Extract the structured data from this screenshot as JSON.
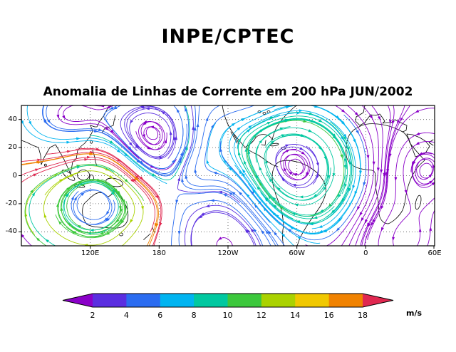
{
  "header": {
    "title": "INPE/CPTEC"
  },
  "chart_data": {
    "type": "streamline_map",
    "title": "Anomalia de Linhas de Corrente em 200 hPa JUN/2002",
    "variable": "Anomalia de Linhas de Corrente",
    "level": "200 hPa",
    "period": "JUN/2002",
    "grid": true,
    "lat_range": [
      -50,
      50
    ],
    "y_tick_labels": [
      "40",
      "20",
      "0",
      "-20",
      "-40"
    ],
    "y_tick_values": [
      40,
      20,
      0,
      -20,
      -40
    ],
    "x_tick_labels": [
      "120E",
      "180",
      "120W",
      "60W",
      "0",
      "60E"
    ],
    "colorbar": {
      "units": "m/s",
      "tick_labels": [
        "2",
        "4",
        "6",
        "8",
        "10",
        "12",
        "14",
        "16",
        "18"
      ],
      "tick_values": [
        2,
        4,
        6,
        8,
        10,
        12,
        14,
        16,
        18
      ],
      "colors": [
        "#8a00c8",
        "#5a2ee0",
        "#2b6cf0",
        "#00b4f0",
        "#00c8a0",
        "#3cc83c",
        "#aad200",
        "#f0c800",
        "#f08200",
        "#e02850"
      ]
    }
  }
}
